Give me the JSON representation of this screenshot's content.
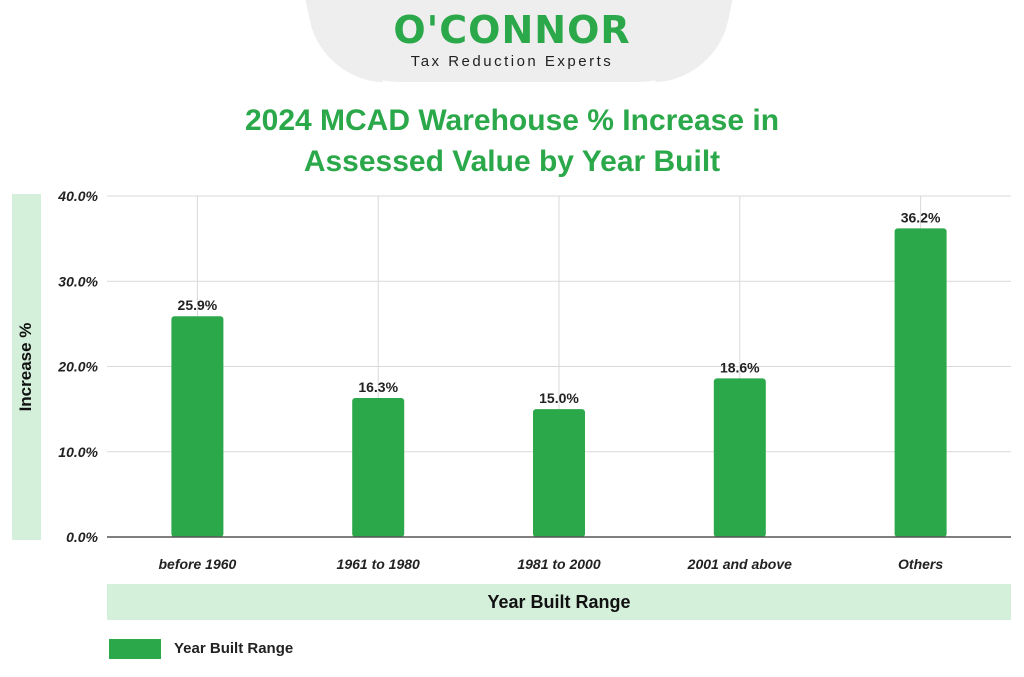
{
  "logo": {
    "name": "O'CONNOR",
    "tagline": "Tax Reduction Experts"
  },
  "colors": {
    "bar": "#2ba84a",
    "band": "#d5f0da",
    "title": "#2ba84a",
    "grid": "#d9d9d9"
  },
  "chart_data": {
    "type": "bar",
    "title": "2024 MCAD Warehouse % Increase in Assessed Value by Year Built",
    "title_lines": [
      "2024 MCAD Warehouse % Increase in",
      "Assessed Value by Year Built"
    ],
    "categories": [
      "before 1960",
      "1961 to 1980",
      "1981 to 2000",
      "2001 and above",
      "Others"
    ],
    "values": [
      25.9,
      16.3,
      15.0,
      18.6,
      36.2
    ],
    "value_labels": [
      "25.9%",
      "16.3%",
      "15.0%",
      "18.6%",
      "36.2%"
    ],
    "y_ticks": [
      0,
      10,
      20,
      30,
      40
    ],
    "y_tick_labels": [
      "0.0%",
      "10.0%",
      "20.0%",
      "30.0%",
      "40.0%"
    ],
    "ylim": [
      0,
      40
    ],
    "xlabel": "Year Built Range",
    "ylabel": "Increase %",
    "legend": [
      "Year Built Range"
    ],
    "legend_position": "bottom-left",
    "grid": true
  }
}
